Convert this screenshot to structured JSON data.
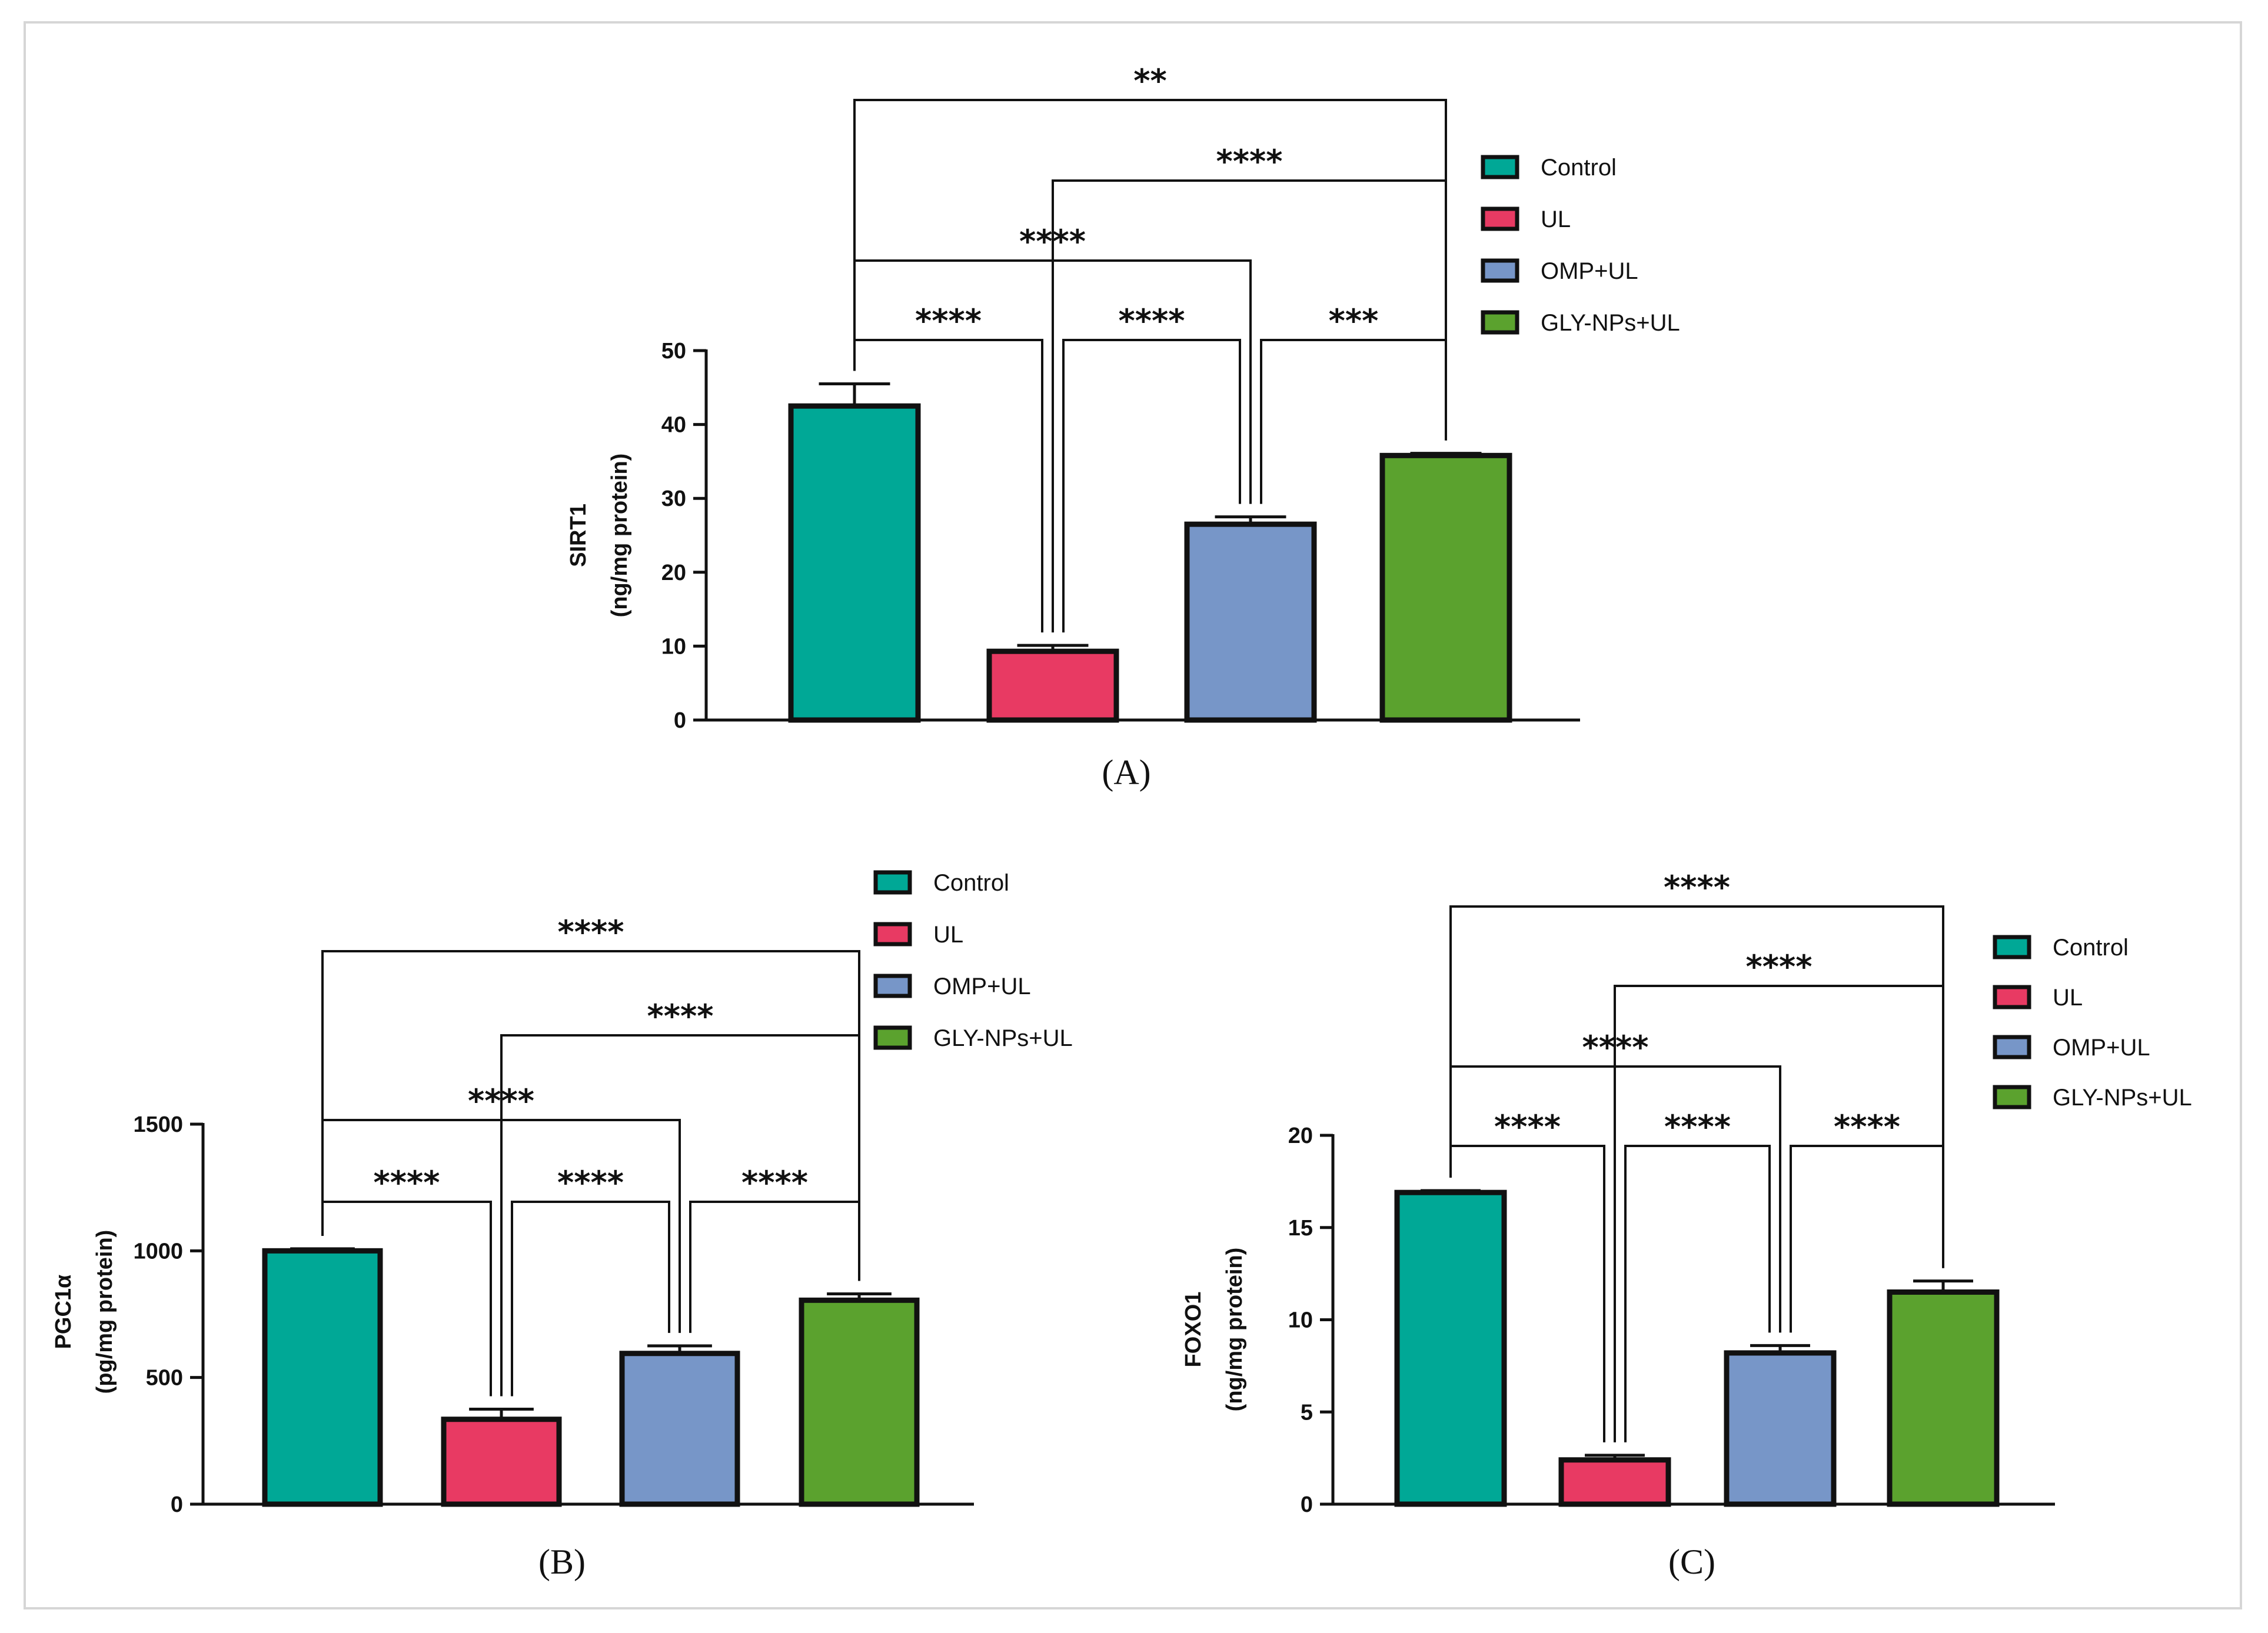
{
  "colors": {
    "Control": "#00a896",
    "UL": "#e83a63",
    "OMP+UL": "#7796c8",
    "GLY-NPs+UL": "#5ba22e"
  },
  "chart_data": [
    {
      "type": "bar",
      "panel_label": "(A)",
      "categories": [
        "Control",
        "UL",
        "OMP+UL",
        "GLY-NPs+UL"
      ],
      "values": [
        42.5,
        9.3,
        26.5,
        35.8
      ],
      "errors": [
        3.0,
        0.8,
        1.0,
        0.3
      ],
      "ylabel_line1": "SIRT1",
      "ylabel_line2": "(ng/mg protein)",
      "ylim": [
        0,
        50
      ],
      "yticks": [
        0,
        10,
        20,
        30,
        40,
        50
      ],
      "ytick_labels": [
        "0",
        "10",
        "20",
        "30",
        "40",
        "50"
      ],
      "legend": [
        "Control",
        "UL",
        "OMP+UL",
        "GLY-NPs+UL"
      ],
      "comparisons": [
        {
          "from": 0,
          "to": 1,
          "label": "****"
        },
        {
          "from": 1,
          "to": 2,
          "label": "****"
        },
        {
          "from": 2,
          "to": 3,
          "label": "***"
        },
        {
          "from": 0,
          "to": 2,
          "label": "****"
        },
        {
          "from": 1,
          "to": 3,
          "label": "****"
        },
        {
          "from": 0,
          "to": 3,
          "label": "**"
        }
      ]
    },
    {
      "type": "bar",
      "panel_label": "(B)",
      "categories": [
        "Control",
        "UL",
        "OMP+UL",
        "GLY-NPs+UL"
      ],
      "values": [
        1000,
        335,
        595,
        805
      ],
      "errors": [
        8,
        40,
        30,
        25
      ],
      "ylabel_line1": "PGC1α",
      "ylabel_line2": "(pg/mg protein)",
      "ylim": [
        0,
        1500
      ],
      "yticks": [
        0,
        500,
        1000,
        1500
      ],
      "ytick_labels": [
        "0",
        "500",
        "1000",
        "1500"
      ],
      "legend": [
        "Control",
        "UL",
        "OMP+UL",
        "GLY-NPs+UL"
      ],
      "comparisons": [
        {
          "from": 0,
          "to": 1,
          "label": "****"
        },
        {
          "from": 1,
          "to": 2,
          "label": "****"
        },
        {
          "from": 2,
          "to": 3,
          "label": "****"
        },
        {
          "from": 0,
          "to": 2,
          "label": "****"
        },
        {
          "from": 1,
          "to": 3,
          "label": "****"
        },
        {
          "from": 0,
          "to": 3,
          "label": "****"
        }
      ]
    },
    {
      "type": "bar",
      "panel_label": "(C)",
      "categories": [
        "Control",
        "UL",
        "OMP+UL",
        "GLY-NPs+UL"
      ],
      "values": [
        16.9,
        2.4,
        8.2,
        11.5
      ],
      "errors": [
        0.1,
        0.25,
        0.4,
        0.6
      ],
      "ylabel_line1": "FOXO1",
      "ylabel_line2": "(ng/mg protein)",
      "ylim": [
        0,
        20
      ],
      "yticks": [
        0,
        5,
        10,
        15,
        20
      ],
      "ytick_labels": [
        "0",
        "5",
        "10",
        "15",
        "20"
      ],
      "legend": [
        "Control",
        "UL",
        "OMP+UL",
        "GLY-NPs+UL"
      ],
      "comparisons": [
        {
          "from": 0,
          "to": 1,
          "label": "****"
        },
        {
          "from": 1,
          "to": 2,
          "label": "****"
        },
        {
          "from": 2,
          "to": 3,
          "label": "****"
        },
        {
          "from": 0,
          "to": 2,
          "label": "****"
        },
        {
          "from": 1,
          "to": 3,
          "label": "****"
        },
        {
          "from": 0,
          "to": 3,
          "label": "****"
        }
      ]
    }
  ]
}
